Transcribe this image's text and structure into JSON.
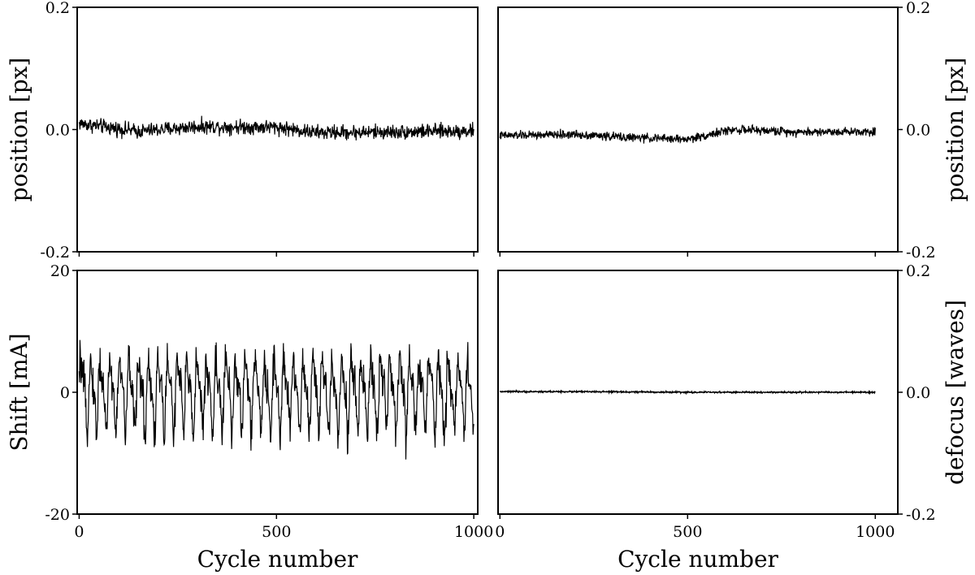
{
  "chart_data": [
    {
      "type": "line",
      "panel": "top-left",
      "ylabel": "position [px]",
      "xlabel": "",
      "xlim": [
        -5,
        1010
      ],
      "ylim": [
        -0.2,
        0.2
      ],
      "yticks": [
        {
          "v": -0.2,
          "label": "-0.2"
        },
        {
          "v": 0.0,
          "label": "0.0"
        },
        {
          "v": 0.2,
          "label": "0.2"
        }
      ],
      "xticks": [
        {
          "v": 0,
          "label": ""
        },
        {
          "v": 500,
          "label": ""
        },
        {
          "v": 1000,
          "label": ""
        }
      ],
      "yaxis_side": "left",
      "series": [
        {
          "x_range": [
            0,
            1000
          ],
          "n": 1000,
          "trend": [
            [
              0,
              0.01
            ],
            [
              150,
              -0.003
            ],
            [
              300,
              0.005
            ],
            [
              500,
              0.004
            ],
            [
              600,
              -0.005
            ],
            [
              800,
              -0.004
            ],
            [
              1000,
              -0.002
            ]
          ],
          "noise": 0.006,
          "periodic": {
            "amp": 0,
            "period": 25
          }
        }
      ]
    },
    {
      "type": "line",
      "panel": "top-right",
      "ylabel": "position [px]",
      "xlabel": "",
      "xlim": [
        -5,
        1060
      ],
      "ylim": [
        -0.2,
        0.2
      ],
      "yticks": [
        {
          "v": -0.2,
          "label": "-0.2"
        },
        {
          "v": 0.0,
          "label": "0.0"
        },
        {
          "v": 0.2,
          "label": "0.2"
        }
      ],
      "xticks": [
        {
          "v": 0,
          "label": ""
        },
        {
          "v": 500,
          "label": ""
        },
        {
          "v": 1000,
          "label": ""
        }
      ],
      "yaxis_side": "right",
      "series": [
        {
          "x_range": [
            0,
            1000
          ],
          "n": 1000,
          "trend": [
            [
              0,
              -0.01
            ],
            [
              200,
              -0.008
            ],
            [
              350,
              -0.013
            ],
            [
              500,
              -0.016
            ],
            [
              560,
              -0.008
            ],
            [
              620,
              0.0
            ],
            [
              800,
              -0.004
            ],
            [
              1000,
              -0.003
            ]
          ],
          "noise": 0.0035,
          "periodic": {
            "amp": 0,
            "period": 25
          }
        }
      ]
    },
    {
      "type": "line",
      "panel": "bottom-left",
      "ylabel": "Shift [mA]",
      "xlabel": "Cycle number",
      "xlim": [
        -5,
        1010
      ],
      "ylim": [
        -20,
        20
      ],
      "yticks": [
        {
          "v": -20,
          "label": "-20"
        },
        {
          "v": 0,
          "label": "0"
        },
        {
          "v": 20,
          "label": "20"
        }
      ],
      "xticks": [
        {
          "v": 0,
          "label": "0"
        },
        {
          "v": 500,
          "label": "500"
        },
        {
          "v": 1000,
          "label": "1000"
        }
      ],
      "yaxis_side": "left",
      "series": [
        {
          "x_range": [
            0,
            1000
          ],
          "n": 1000,
          "trend": [
            [
              0,
              0
            ],
            [
              1000,
              0
            ]
          ],
          "noise": 1.6,
          "periodic": {
            "amp": 6.5,
            "period": 24.5
          }
        }
      ]
    },
    {
      "type": "line",
      "panel": "bottom-right",
      "ylabel": "defocus [waves]",
      "xlabel": "Cycle number",
      "xlim": [
        -5,
        1060
      ],
      "ylim": [
        -0.2,
        0.2
      ],
      "yticks": [
        {
          "v": -0.2,
          "label": "-0.2"
        },
        {
          "v": 0.0,
          "label": "0.0"
        },
        {
          "v": 0.2,
          "label": "0.2"
        }
      ],
      "xticks": [
        {
          "v": 0,
          "label": "0"
        },
        {
          "v": 500,
          "label": "500"
        },
        {
          "v": 1000,
          "label": "1000"
        }
      ],
      "yaxis_side": "right",
      "series": [
        {
          "x_range": [
            0,
            1000
          ],
          "n": 1000,
          "trend": [
            [
              0,
              0.001
            ],
            [
              200,
              0.001
            ],
            [
              500,
              0.0
            ],
            [
              1000,
              0.0
            ]
          ],
          "noise": 0.0006,
          "periodic": {
            "amp": 0,
            "period": 25
          }
        }
      ]
    }
  ]
}
